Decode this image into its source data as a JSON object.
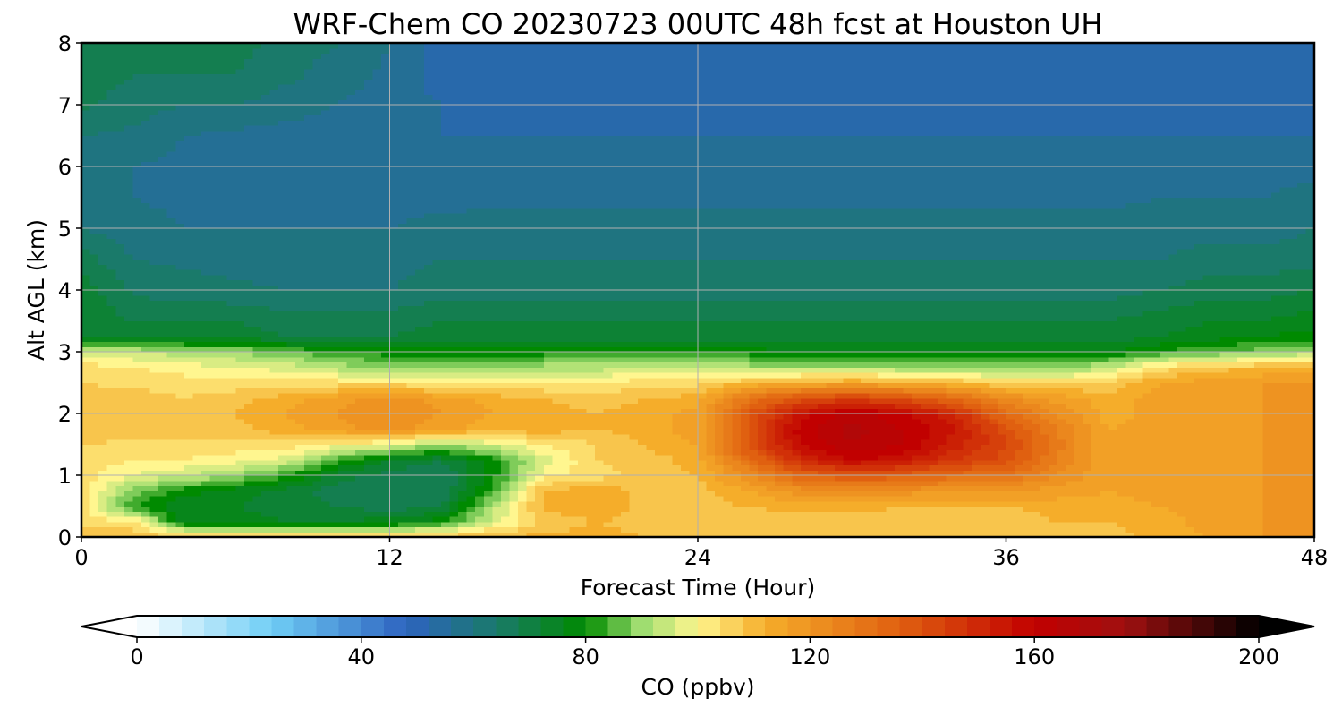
{
  "chart_data": {
    "type": "heatmap",
    "title": "WRF-Chem CO  20230723 00UTC 48h fcst at Houston UH",
    "xlabel": "Forecast Time (Hour)",
    "ylabel": "Alt AGL (km)",
    "xlim": [
      0,
      48
    ],
    "ylim": [
      0,
      8
    ],
    "x_ticks": [
      "0",
      "12",
      "24",
      "36",
      "48"
    ],
    "y_ticks": [
      "0",
      "1",
      "2",
      "3",
      "4",
      "5",
      "6",
      "7",
      "8"
    ],
    "grid": true,
    "x_hours": [
      0,
      2,
      4,
      6,
      8,
      10,
      12,
      14,
      16,
      18,
      20,
      22,
      24,
      26,
      28,
      30,
      32,
      34,
      36,
      38,
      40,
      42,
      44,
      46,
      48
    ],
    "z_km": [
      0,
      0.25,
      0.5,
      0.75,
      1.0,
      1.25,
      1.5,
      1.75,
      2.0,
      2.25,
      2.5,
      2.75,
      3.0,
      3.25,
      3.5,
      4.0,
      4.5,
      5.0,
      5.5,
      6.0,
      6.5,
      7.0,
      7.5,
      8.0
    ],
    "values_ppbv": [
      [
        108,
        104,
        104,
        104,
        104,
        104,
        106,
        109,
        110,
        108,
        106,
        104,
        97,
        73,
        73,
        73,
        68,
        62,
        60,
        60,
        62,
        67,
        68,
        66
      ],
      [
        108,
        104,
        82,
        88,
        98,
        102,
        105,
        108,
        110,
        108,
        105,
        102,
        94,
        72,
        70,
        65,
        62,
        60,
        58,
        58,
        61,
        64,
        66,
        66
      ],
      [
        110,
        76,
        74,
        80,
        94,
        102,
        104,
        108,
        108,
        106,
        104,
        100,
        92,
        72,
        70,
        64,
        61,
        58,
        57,
        57,
        58,
        62,
        66,
        68
      ],
      [
        110,
        76,
        74,
        76,
        90,
        100,
        104,
        109,
        110,
        108,
        104,
        98,
        90,
        72,
        70,
        63,
        60,
        58,
        57,
        57,
        57,
        62,
        66,
        68
      ],
      [
        108,
        74,
        72,
        72,
        82,
        96,
        104,
        112,
        114,
        112,
        104,
        96,
        86,
        70,
        68,
        62,
        60,
        58,
        56,
        57,
        56,
        60,
        63,
        64
      ],
      [
        108,
        74,
        70,
        68,
        72,
        84,
        100,
        116,
        118,
        116,
        104,
        92,
        82,
        70,
        68,
        62,
        60,
        58,
        56,
        56,
        56,
        58,
        60,
        62
      ],
      [
        110,
        76,
        68,
        66,
        68,
        74,
        98,
        120,
        122,
        120,
        104,
        90,
        80,
        70,
        68,
        62,
        60,
        58,
        56,
        56,
        56,
        56,
        57,
        58
      ],
      [
        110,
        80,
        70,
        66,
        66,
        70,
        90,
        115,
        118,
        116,
        102,
        88,
        80,
        72,
        70,
        64,
        62,
        60,
        56,
        56,
        54,
        54,
        52,
        52
      ],
      [
        110,
        96,
        92,
        84,
        80,
        80,
        96,
        112,
        114,
        112,
        102,
        90,
        80,
        72,
        70,
        64,
        62,
        60,
        57,
        56,
        54,
        52,
        52,
        52
      ],
      [
        112,
        106,
        112,
        110,
        100,
        96,
        102,
        112,
        112,
        110,
        102,
        92,
        80,
        72,
        70,
        64,
        62,
        60,
        57,
        56,
        54,
        52,
        50,
        50
      ],
      [
        112,
        110,
        114,
        114,
        104,
        106,
        106,
        110,
        110,
        108,
        102,
        92,
        80,
        72,
        70,
        64,
        62,
        60,
        57,
        56,
        54,
        52,
        50,
        50
      ],
      [
        110,
        108,
        108,
        108,
        108,
        108,
        110,
        112,
        112,
        110,
        104,
        96,
        82,
        72,
        70,
        64,
        62,
        60,
        57,
        56,
        54,
        52,
        50,
        50
      ],
      [
        110,
        108,
        108,
        108,
        110,
        112,
        114,
        116,
        116,
        112,
        104,
        96,
        82,
        72,
        70,
        64,
        62,
        60,
        57,
        56,
        54,
        52,
        50,
        50
      ],
      [
        108,
        106,
        110,
        114,
        122,
        132,
        140,
        140,
        138,
        130,
        110,
        92,
        80,
        72,
        70,
        64,
        62,
        60,
        57,
        56,
        54,
        52,
        50,
        50
      ],
      [
        108,
        106,
        112,
        120,
        134,
        150,
        158,
        160,
        156,
        140,
        112,
        92,
        78,
        72,
        70,
        64,
        62,
        60,
        57,
        56,
        54,
        52,
        50,
        50
      ],
      [
        108,
        106,
        112,
        122,
        138,
        158,
        166,
        168,
        164,
        144,
        114,
        92,
        78,
        72,
        70,
        64,
        62,
        60,
        57,
        56,
        54,
        52,
        50,
        50
      ],
      [
        108,
        106,
        110,
        120,
        136,
        155,
        162,
        162,
        158,
        140,
        112,
        90,
        78,
        72,
        70,
        64,
        62,
        60,
        57,
        56,
        54,
        52,
        50,
        50
      ],
      [
        108,
        106,
        110,
        118,
        132,
        146,
        152,
        154,
        150,
        132,
        110,
        88,
        78,
        72,
        70,
        64,
        62,
        60,
        57,
        56,
        54,
        52,
        50,
        50
      ],
      [
        108,
        106,
        110,
        118,
        130,
        140,
        142,
        140,
        132,
        122,
        106,
        88,
        76,
        72,
        70,
        64,
        62,
        60,
        57,
        56,
        54,
        52,
        50,
        50
      ],
      [
        108,
        110,
        112,
        116,
        122,
        126,
        128,
        126,
        122,
        116,
        106,
        88,
        76,
        72,
        70,
        64,
        62,
        60,
        57,
        56,
        54,
        52,
        50,
        50
      ],
      [
        108,
        110,
        112,
        114,
        114,
        114,
        114,
        114,
        112,
        112,
        106,
        94,
        78,
        72,
        70,
        64,
        62,
        60,
        57,
        56,
        54,
        52,
        50,
        50
      ],
      [
        112,
        112,
        114,
        116,
        116,
        116,
        116,
        116,
        116,
        116,
        114,
        104,
        82,
        74,
        72,
        66,
        62,
        60,
        58,
        56,
        54,
        52,
        50,
        50
      ],
      [
        114,
        116,
        116,
        116,
        116,
        116,
        116,
        116,
        116,
        116,
        116,
        108,
        86,
        76,
        74,
        68,
        64,
        60,
        58,
        56,
        54,
        52,
        50,
        50
      ],
      [
        118,
        118,
        118,
        118,
        118,
        118,
        118,
        118,
        118,
        118,
        118,
        110,
        88,
        78,
        74,
        68,
        64,
        60,
        58,
        56,
        54,
        52,
        50,
        50
      ],
      [
        118,
        118,
        118,
        118,
        118,
        118,
        118,
        118,
        118,
        118,
        118,
        112,
        92,
        80,
        76,
        70,
        64,
        62,
        60,
        56,
        54,
        52,
        50,
        50
      ]
    ]
  },
  "colorbar": {
    "label": "CO  (ppbv)",
    "ticks": [
      "0",
      "40",
      "80",
      "120",
      "160",
      "200"
    ],
    "min": 0,
    "max": 200,
    "extend": "both",
    "colors": [
      "#ffffff",
      "#6fcef5",
      "#2d63c0",
      "#1a7a6a",
      "#008a00",
      "#9fdd70",
      "#fff68f",
      "#f5ad2a",
      "#e06010",
      "#c10000",
      "#a01010",
      "#000000"
    ],
    "color_stops": [
      0,
      24,
      48,
      64,
      80,
      90,
      100,
      112,
      136,
      160,
      176,
      200
    ]
  }
}
